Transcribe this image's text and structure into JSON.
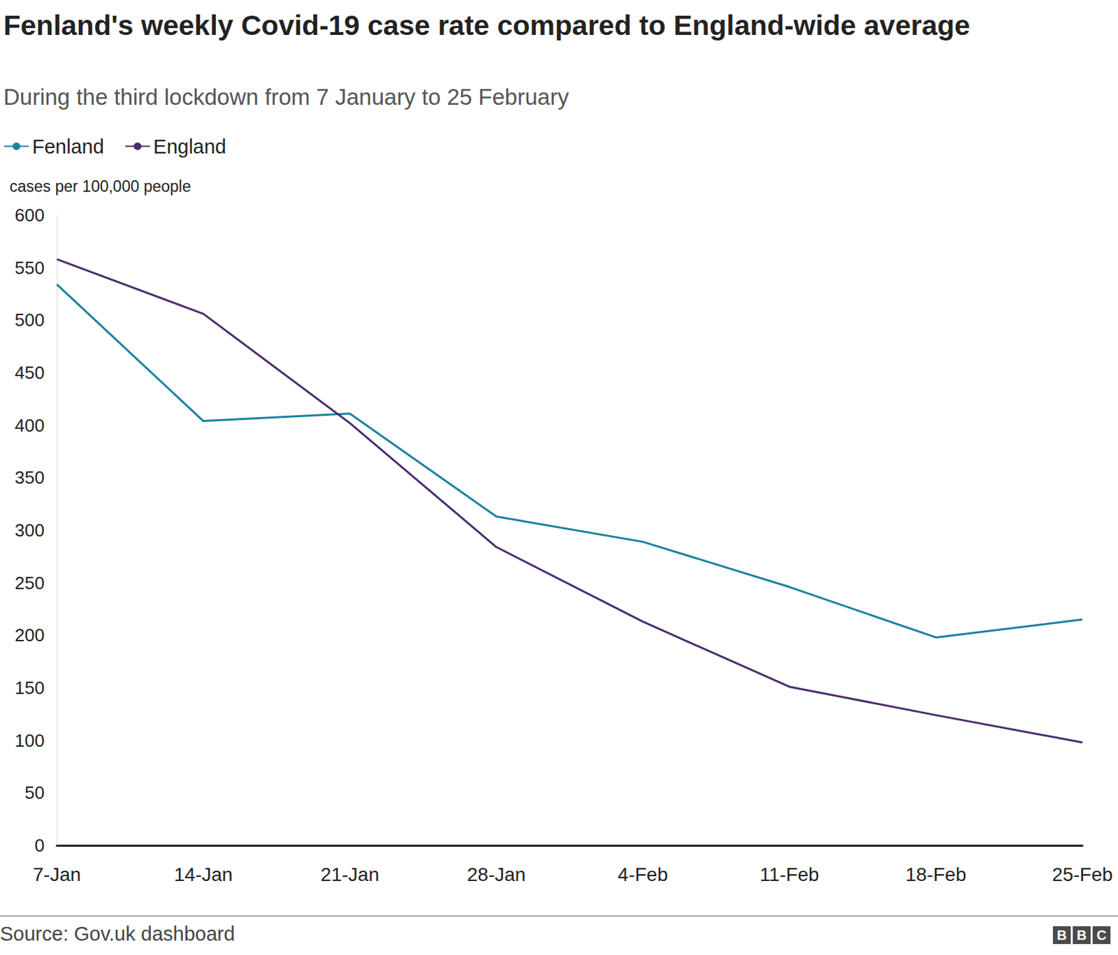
{
  "chart_data": {
    "type": "line",
    "title": "Fenland's weekly Covid-19 case rate compared to England-wide average",
    "subtitle": "During the third lockdown from 7 January to 25 February",
    "y_label": "cases per 100,000 people",
    "source": "Source: Gov.uk dashboard",
    "credit": "BBC",
    "categories": [
      "7-Jan",
      "14-Jan",
      "21-Jan",
      "28-Jan",
      "4-Feb",
      "11-Feb",
      "18-Feb",
      "25-Feb"
    ],
    "series": [
      {
        "name": "Fenland",
        "color": "#1a82a0",
        "values": [
          534,
          404,
          411,
          313,
          289,
          246,
          198,
          215
        ]
      },
      {
        "name": "England",
        "color": "#4b2d6e",
        "values": [
          558,
          506,
          402,
          284,
          213,
          151,
          124,
          98
        ]
      }
    ],
    "ylim": [
      0,
      600
    ],
    "yticks": [
      0,
      50,
      100,
      150,
      200,
      250,
      300,
      350,
      400,
      450,
      500,
      550,
      600
    ],
    "grid": false,
    "legend": "top-left"
  }
}
